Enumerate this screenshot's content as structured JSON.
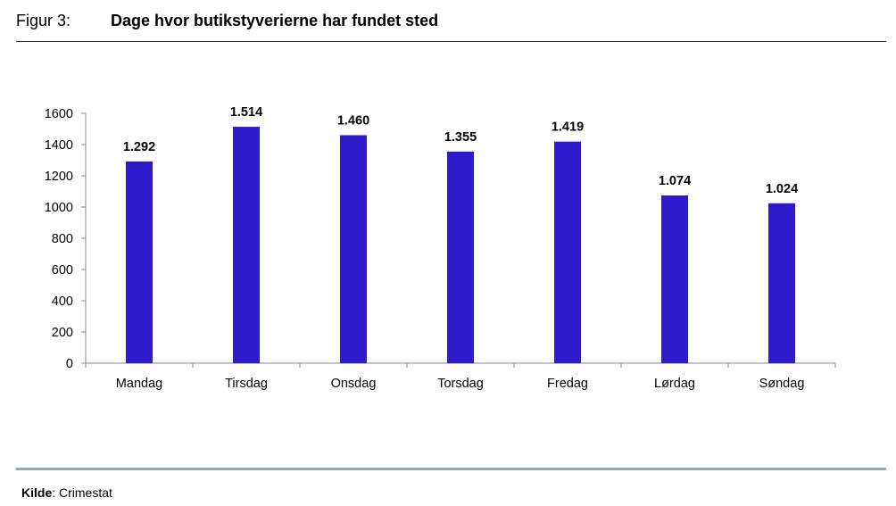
{
  "header": {
    "figure_label": "Figur 3:",
    "title": "Dage hvor butikstyverierne har fundet sted"
  },
  "footer": {
    "source_label": "Kilde",
    "source_value": ": Crimestat"
  },
  "colors": {
    "bar": "#2e1acb",
    "axis": "#888888"
  },
  "chart_data": {
    "type": "bar",
    "categories": [
      "Mandag",
      "Tirsdag",
      "Onsdag",
      "Torsdag",
      "Fredag",
      "Lørdag",
      "Søndag"
    ],
    "values": [
      1292,
      1514,
      1460,
      1355,
      1419,
      1074,
      1024
    ],
    "data_labels": [
      "1.292",
      "1.514",
      "1.460",
      "1.355",
      "1.419",
      "1.074",
      "1.024"
    ],
    "ylim": [
      0,
      1600
    ],
    "yticks": [
      0,
      200,
      400,
      600,
      800,
      1000,
      1200,
      1400,
      1600
    ],
    "grid": false,
    "legend": "none"
  }
}
